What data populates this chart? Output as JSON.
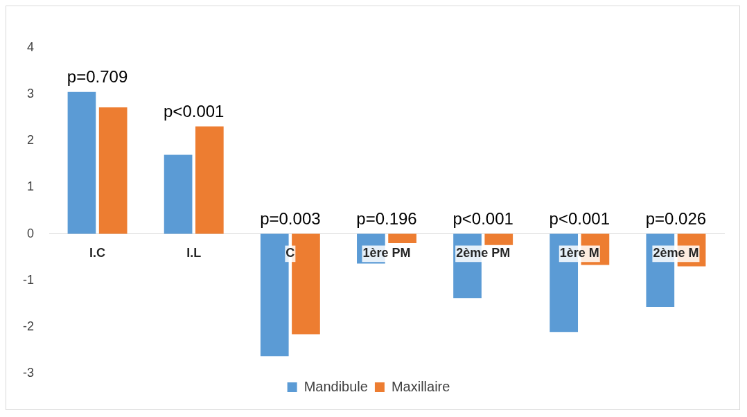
{
  "chart_data": {
    "type": "bar",
    "categories": [
      "I.C",
      "I.L",
      "C",
      "1ère PM",
      "2ème PM",
      "1ère M",
      "2ème M"
    ],
    "series": [
      {
        "name": "Mandibule",
        "color": "#5b9bd5",
        "values": [
          3.05,
          1.7,
          -2.63,
          -0.64,
          -1.38,
          -2.11,
          -1.57
        ]
      },
      {
        "name": "Maxillaire",
        "color": "#ed7d31",
        "values": [
          2.72,
          2.31,
          -2.16,
          -0.2,
          -0.24,
          -0.67,
          -0.7
        ]
      }
    ],
    "ylim": [
      -3,
      4
    ],
    "yticks": [
      -3,
      -2,
      -1,
      0,
      1,
      2,
      3,
      4
    ],
    "grid": false,
    "legend": "bottom",
    "annotations": [
      "p=0.709",
      "p<0.001",
      "p=0.003",
      "p=0.196",
      "p<0.001",
      "p<0.001",
      "p=0.026"
    ]
  }
}
